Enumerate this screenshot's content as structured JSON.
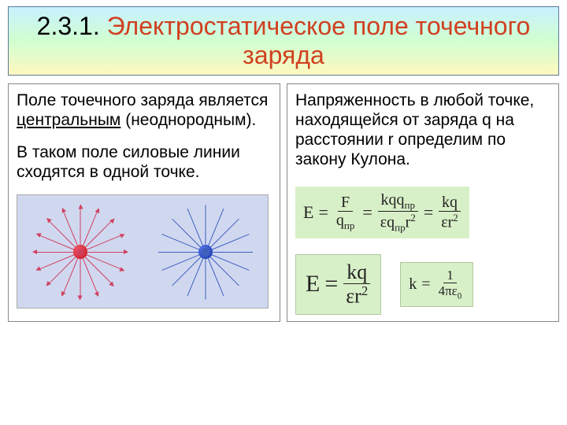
{
  "title": {
    "number": "2.3.1.",
    "text": "Электростатическое поле точечного заряда"
  },
  "left": {
    "p1_a": "Поле точечного заряда является ",
    "p1_u": "центральным",
    "p1_b": " (неоднородным).",
    "p2": "В таком поле силовые линии сходятся в одной точке.",
    "diagram": {
      "bg_color": "#d0d8f0",
      "positive": {
        "color": "#d04060",
        "charge_color": "#c00000",
        "rays": 16
      },
      "negative": {
        "color": "#4060c0",
        "charge_color": "#0020a0",
        "rays": 16
      }
    }
  },
  "right": {
    "p1": "Напряженность в любой точке, находящейся от заряда q на расстоянии r определим по закону Кулона.",
    "eq_chain": {
      "E": "E",
      "t1_num": "F",
      "t1_den": "q",
      "t2_num": "kqq",
      "t2_den": "εq  r",
      "t3_num": "kq",
      "t3_den": "εr"
    },
    "eq_big": {
      "lhs": "E",
      "num": "kq",
      "den": "εr"
    },
    "eq_k": {
      "lhs": "k",
      "num": "1",
      "den": "4πε"
    },
    "box_colors": {
      "bg": "#d8f0c8",
      "border": "#b0c8a0"
    }
  }
}
